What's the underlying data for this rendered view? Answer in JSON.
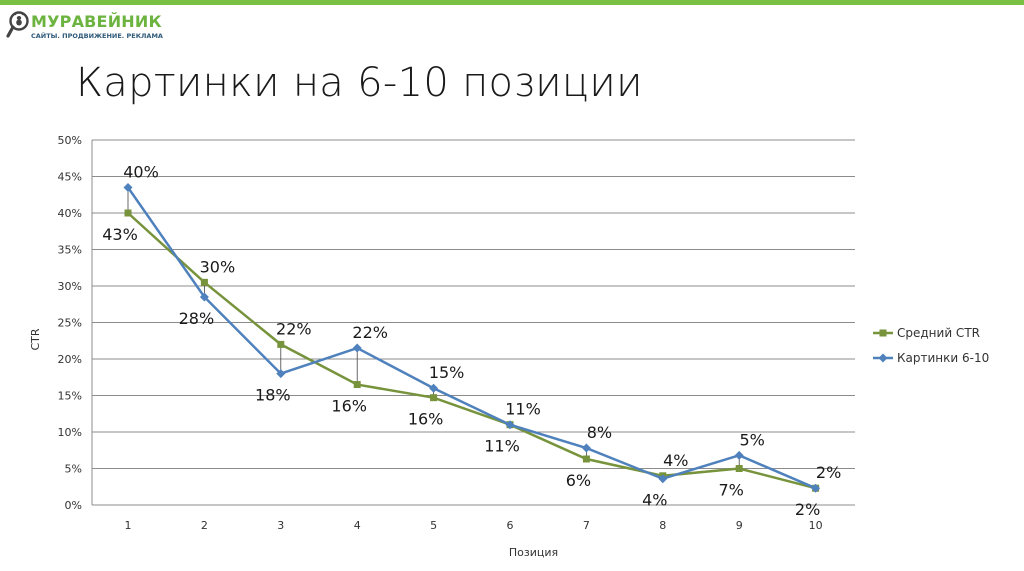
{
  "colors": {
    "accent_bar": "#7ac143",
    "series_avg": "#77933c",
    "series_img": "#4f81bd",
    "grid": "#8c8c8c"
  },
  "logo": {
    "name": "МУРАВЕЙНИК",
    "tagline": "САЙТЫ. ПРОДВИЖЕНИЕ. РЕКЛАМА",
    "icon": "ant-magnifier-icon"
  },
  "slide": {
    "title": "Картинки на 6-10 позиции"
  },
  "chart_data": {
    "type": "line",
    "title": "",
    "xlabel": "Позиция",
    "ylabel": "CTR",
    "x": [
      1,
      2,
      3,
      4,
      5,
      6,
      7,
      8,
      9,
      10
    ],
    "ylim": [
      0,
      0.5
    ],
    "y_ticks": [
      "0%",
      "5%",
      "10%",
      "15%",
      "20%",
      "25%",
      "30%",
      "35%",
      "40%",
      "45%",
      "50%"
    ],
    "grid": true,
    "legend_position": "right",
    "series": [
      {
        "name": "Средний CTR",
        "marker": "square",
        "values": [
          0.4,
          0.305,
          0.22,
          0.165,
          0.147,
          0.11,
          0.063,
          0.04,
          0.05,
          0.023
        ]
      },
      {
        "name": "Картинки 6-10",
        "marker": "diamond",
        "values": [
          0.435,
          0.285,
          0.18,
          0.215,
          0.16,
          0.11,
          0.078,
          0.036,
          0.068,
          0.023
        ]
      }
    ],
    "data_labels": {
      "upper": [
        "40%",
        "30%",
        "22%",
        "22%",
        "15%",
        "11%",
        "8%",
        "4%",
        "5%",
        "2%"
      ],
      "lower": [
        "43%",
        "28%",
        "18%",
        "16%",
        "16%",
        "11%",
        "6%",
        "4%",
        "7%",
        "2%"
      ]
    }
  }
}
